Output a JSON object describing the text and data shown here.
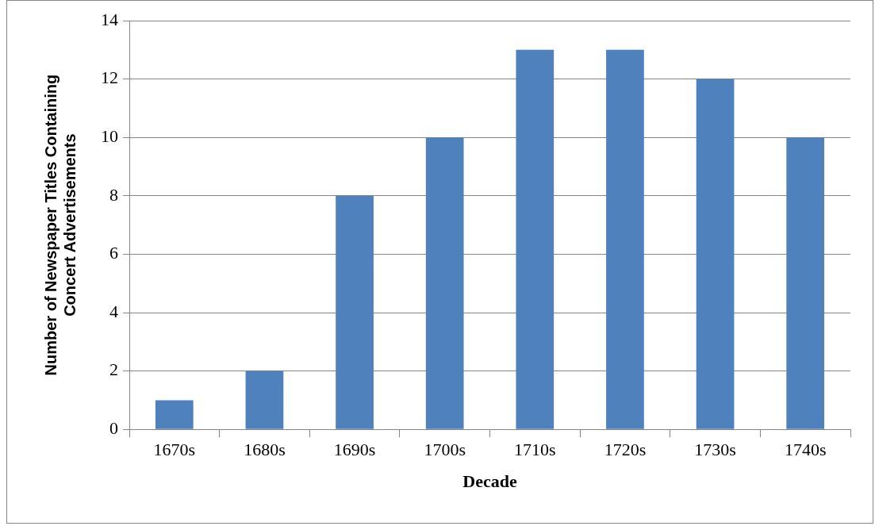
{
  "chart_data": {
    "type": "bar",
    "xlabel": "Decade",
    "ylabel": "Number of Newspaper Titles Containing Concert Advertisements",
    "categories": [
      "1670s",
      "1680s",
      "1690s",
      "1700s",
      "1710s",
      "1720s",
      "1730s",
      "1740s"
    ],
    "values": [
      1,
      2,
      8,
      10,
      13,
      13,
      12,
      10
    ],
    "color": "#4f81bd",
    "ylim": [
      0,
      14
    ],
    "yticks": [
      0,
      2,
      4,
      6,
      8,
      10,
      12,
      14
    ],
    "grid": "y",
    "legend": false
  }
}
